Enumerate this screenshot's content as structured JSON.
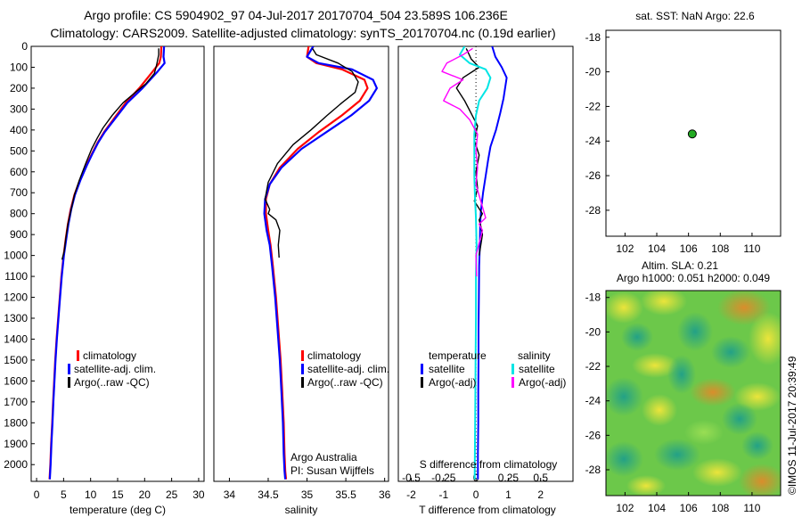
{
  "header": {
    "title_line1": "Argo profile: CS 5904902_97 04-Jul-2017 20170704_504 23.589S 106.236E",
    "title_line2": "Climatology: CARS2009. Satellite-adjusted climatology: synTS_20170704.nc (0.19d earlier)"
  },
  "colors": {
    "climatology": "#ff0000",
    "satellite": "#0000ff",
    "argo": "#000000",
    "sal_satellite": "#00e5e5",
    "sal_argo": "#ff00ff",
    "float_marker": "#22aa22"
  },
  "legend_profiles": {
    "items": [
      "climatology",
      "satellite-adj. clim.",
      "Argo(..raw -QC)"
    ]
  },
  "legend_diff": {
    "temp_header": "temperature",
    "sal_header": "salinity",
    "temp_items": [
      "satellite",
      "Argo(-adj)"
    ],
    "sal_items": [
      "satellite",
      "Argo(-adj)"
    ]
  },
  "credits": {
    "line1": "Argo Australia",
    "line2": "PI: Susan Wijffels"
  },
  "sst_panel": {
    "title": "sat. SST: NaN Argo: 22.6"
  },
  "sla_panel": {
    "title_line1": "Altim. SLA: 0.21",
    "title_line2": "Argo h1000: 0.051 h2000: 0.049"
  },
  "timestamp": "©IMOS 11-Jul-2017 20:39:49",
  "chart_data": [
    {
      "type": "line",
      "panel": "temperature",
      "xlabel": "temperature (deg C)",
      "ylabel": "",
      "xlim": [
        -1,
        31
      ],
      "ylim": [
        2080,
        0
      ],
      "xticks": [
        0,
        5,
        10,
        15,
        20,
        25,
        30
      ],
      "yticks": [
        0,
        100,
        200,
        300,
        400,
        500,
        600,
        700,
        800,
        900,
        1000,
        1100,
        1200,
        1300,
        1400,
        1500,
        1600,
        1700,
        1800,
        1900,
        2000
      ],
      "series": [
        {
          "name": "climatology",
          "color": "#ff0000",
          "width": 2.2,
          "x": [
            23.1,
            23.0,
            22.7,
            21.5,
            19.0,
            16.5,
            14.2,
            12.5,
            11.3,
            10.3,
            9.2,
            8.0,
            7.0,
            6.3,
            5.8,
            5.4,
            5.0,
            4.6,
            4.3,
            4.0,
            3.7,
            3.45,
            3.25,
            3.05,
            2.9,
            2.7,
            2.55,
            2.4
          ],
          "y": [
            0,
            50,
            80,
            120,
            200,
            270,
            350,
            410,
            460,
            510,
            570,
            640,
            710,
            780,
            850,
            920,
            1000,
            1100,
            1200,
            1300,
            1400,
            1500,
            1600,
            1700,
            1800,
            1900,
            2000,
            2070
          ]
        },
        {
          "name": "satellite-adj. clim.",
          "color": "#0000ff",
          "width": 2.2,
          "x": [
            23.6,
            23.5,
            23.7,
            22.4,
            19.6,
            16.8,
            14.4,
            12.6,
            11.4,
            10.4,
            9.3,
            8.1,
            7.1,
            6.4,
            5.9,
            5.5,
            5.05,
            4.65,
            4.35,
            4.05,
            3.75,
            3.5,
            3.3,
            3.1,
            2.95,
            2.75,
            2.6,
            2.45
          ],
          "y": [
            0,
            50,
            80,
            120,
            200,
            270,
            350,
            410,
            460,
            510,
            570,
            640,
            710,
            780,
            850,
            920,
            1000,
            1100,
            1200,
            1300,
            1400,
            1500,
            1600,
            1700,
            1800,
            1900,
            2000,
            2070
          ]
        },
        {
          "name": "Argo(..raw -QC)",
          "color": "#000000",
          "width": 1.4,
          "x": [
            22.6,
            22.6,
            22.2,
            21.8,
            20.2,
            18.3,
            16.0,
            14.0,
            12.3,
            11.2,
            10.2,
            9.1,
            7.9,
            7.0,
            6.4,
            5.8,
            5.4,
            5.1,
            4.7
          ],
          "y": [
            10,
            40,
            90,
            130,
            180,
            220,
            270,
            330,
            390,
            440,
            490,
            560,
            640,
            710,
            780,
            850,
            920,
            980,
            1020
          ]
        }
      ]
    },
    {
      "type": "line",
      "panel": "salinity",
      "xlabel": "salinity",
      "ylabel": "",
      "xlim": [
        33.8,
        36.05
      ],
      "ylim": [
        2080,
        0
      ],
      "xticks": [
        34,
        34.5,
        35,
        35.5,
        36
      ],
      "series": [
        {
          "name": "climatology",
          "color": "#ff0000",
          "width": 2.2,
          "x": [
            35.02,
            35.0,
            35.12,
            35.45,
            35.74,
            35.78,
            35.68,
            35.45,
            35.15,
            34.88,
            34.65,
            34.52,
            34.47,
            34.47,
            34.5,
            34.53,
            34.56,
            34.6,
            34.63,
            34.66,
            34.68,
            34.7,
            34.71,
            34.72,
            34.73
          ],
          "y": [
            0,
            50,
            80,
            110,
            160,
            200,
            260,
            330,
            410,
            490,
            580,
            660,
            730,
            800,
            880,
            950,
            1050,
            1200,
            1350,
            1500,
            1650,
            1800,
            1950,
            2030,
            2070
          ]
        },
        {
          "name": "satellite-adj. clim.",
          "color": "#0000ff",
          "width": 2.2,
          "x": [
            35.08,
            35.0,
            35.15,
            35.58,
            35.85,
            35.9,
            35.8,
            35.57,
            35.25,
            34.93,
            34.67,
            34.52,
            34.46,
            34.45,
            34.48,
            34.52,
            34.55,
            34.59,
            34.62,
            34.65,
            34.67,
            34.69,
            34.7,
            34.71,
            34.72
          ],
          "y": [
            0,
            50,
            80,
            110,
            160,
            200,
            260,
            330,
            410,
            490,
            580,
            660,
            730,
            800,
            880,
            950,
            1050,
            1200,
            1350,
            1500,
            1650,
            1800,
            1950,
            2030,
            2070
          ]
        },
        {
          "name": "Argo(..raw -QC)",
          "color": "#000000",
          "width": 1.4,
          "x": [
            35.07,
            35.12,
            35.4,
            35.58,
            35.66,
            35.62,
            35.45,
            35.26,
            35.05,
            34.82,
            34.62,
            34.5,
            34.46,
            34.52,
            34.5,
            34.6,
            34.62,
            34.65,
            34.63,
            34.64
          ],
          "y": [
            10,
            40,
            80,
            120,
            170,
            220,
            270,
            330,
            400,
            470,
            560,
            650,
            730,
            780,
            800,
            830,
            850,
            880,
            950,
            1010
          ]
        }
      ]
    },
    {
      "type": "line",
      "panel": "difference",
      "xlabel": "T difference from climatology",
      "xlabel_top": "S difference from climatology",
      "xlim": [
        -2.4,
        3.0
      ],
      "ylim": [
        2080,
        0
      ],
      "xticks": [
        -2,
        -1,
        0,
        1,
        2
      ],
      "xticks_top": [
        -0.5,
        -0.25,
        0,
        0.25,
        0.5
      ],
      "xticks_top_labels": [
        "-0.5",
        "-0.25",
        "0",
        "0.25",
        "0.5"
      ],
      "zero_line": 0,
      "series": [
        {
          "name": "temperature satellite",
          "color": "#0000ff",
          "width": 2,
          "x": [
            0.5,
            0.6,
            0.8,
            0.95,
            0.85,
            0.75,
            0.62,
            0.45,
            0.38,
            0.3,
            0.22,
            0.15,
            0.13,
            0.12,
            0.1,
            0.09,
            0.08,
            0.08,
            0.07,
            0.07,
            0.06,
            0.06,
            0.06
          ],
          "y": [
            0,
            50,
            100,
            150,
            250,
            320,
            400,
            480,
            540,
            620,
            700,
            790,
            860,
            950,
            1050,
            1200,
            1350,
            1500,
            1650,
            1800,
            1950,
            2020,
            2070
          ]
        },
        {
          "name": "temperature Argo(-adj)",
          "color": "#000000",
          "width": 1.4,
          "x": [
            -0.3,
            -0.15,
            0.1,
            -0.4,
            -0.6,
            -0.35,
            -0.15,
            0.05,
            -0.05,
            0.1,
            0.0,
            0.05,
            -0.05,
            0.2,
            0.1,
            0.15,
            0.2,
            0.1
          ],
          "y": [
            10,
            60,
            100,
            150,
            200,
            260,
            320,
            380,
            450,
            520,
            600,
            680,
            740,
            800,
            830,
            860,
            900,
            1000
          ]
        },
        {
          "name": "salinity satellite",
          "color": "#00e5e5",
          "width": 2,
          "x": [
            -0.35,
            -0.5,
            -0.2,
            0.3,
            0.45,
            0.35,
            0.1,
            0.0,
            -0.05,
            -0.05,
            -0.05,
            -0.03,
            0.0,
            0.02,
            0.0,
            0.0,
            -0.01,
            -0.02,
            -0.03,
            -0.04
          ],
          "y": [
            0,
            40,
            80,
            110,
            150,
            200,
            260,
            330,
            420,
            520,
            620,
            720,
            820,
            950,
            1100,
            1300,
            1500,
            1700,
            1900,
            2070
          ]
        },
        {
          "name": "salinity Argo(-adj)",
          "color": "#ff00ff",
          "width": 1.4,
          "x": [
            -0.1,
            -0.4,
            -0.9,
            -1.05,
            -0.4,
            -0.8,
            -1.0,
            -0.5,
            -0.2,
            0.05,
            0.0,
            0.05,
            0.0,
            0.3,
            0.1,
            0.2,
            0.0,
            0.02
          ],
          "y": [
            10,
            40,
            80,
            120,
            160,
            200,
            260,
            300,
            350,
            420,
            500,
            580,
            660,
            820,
            850,
            880,
            1000,
            1100
          ]
        }
      ]
    },
    {
      "type": "scatter",
      "panel": "sst",
      "title": "sat. SST: NaN Argo: 22.6",
      "xlim": [
        100.8,
        111.8
      ],
      "ylim": [
        -29.5,
        -17.6
      ],
      "xticks": [
        102,
        104,
        106,
        108,
        110
      ],
      "yticks": [
        -18,
        -20,
        -22,
        -24,
        -26,
        -28
      ],
      "points": [
        {
          "x": 106.236,
          "y": -23.589
        }
      ]
    },
    {
      "type": "heatmap",
      "panel": "sla",
      "title": "Altim. SLA: 0.21",
      "xlim": [
        100.8,
        111.8
      ],
      "ylim": [
        -29.5,
        -17.6
      ],
      "xticks": [
        102,
        104,
        106,
        108,
        110
      ],
      "yticks": [
        -18,
        -20,
        -22,
        -24,
        -26,
        -28
      ],
      "colormap": "sea level anomaly (green field with yellow/orange highs and teal lows)"
    }
  ]
}
